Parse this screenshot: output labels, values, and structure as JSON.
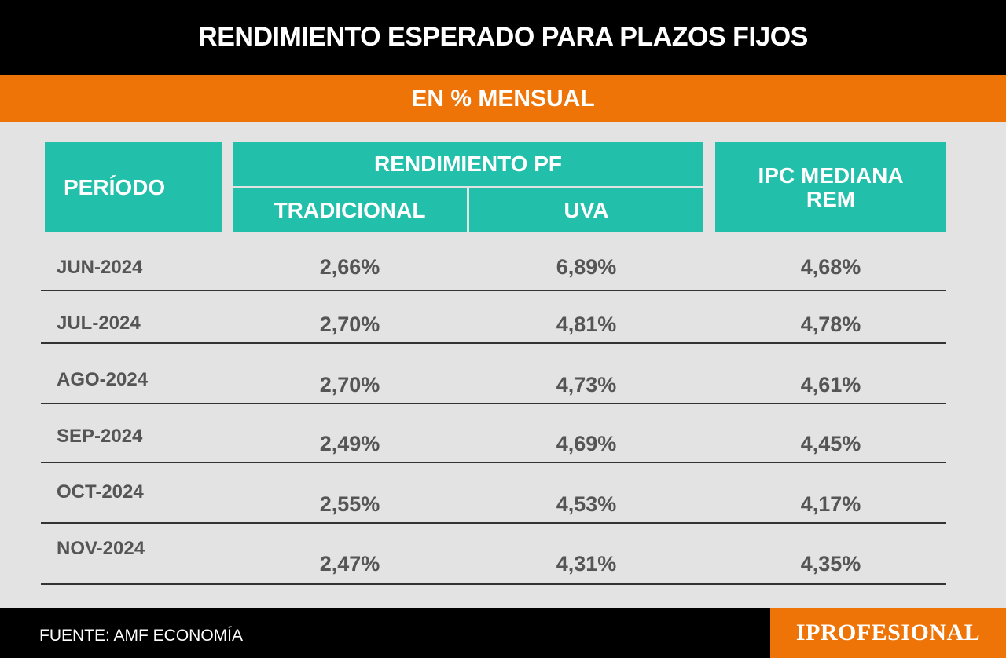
{
  "header": {
    "title": "RENDIMIENTO ESPERADO PARA PLAZOS FIJOS",
    "subtitle": "EN % MENSUAL"
  },
  "table": {
    "col_periodo": "PERÍODO",
    "col_group": "RENDIMIENTO PF",
    "col_tradicional": "TRADICIONAL",
    "col_uva": "UVA",
    "col_ipc_line1": "IPC MEDIANA",
    "col_ipc_line2": "REM"
  },
  "chart_data": {
    "type": "table",
    "title": "RENDIMIENTO ESPERADO PARA PLAZOS FIJOS",
    "subtitle": "EN % MENSUAL",
    "columns": [
      "PERÍODO",
      "TRADICIONAL",
      "UVA",
      "IPC MEDIANA REM"
    ],
    "rows": [
      {
        "period": "JUN-2024",
        "tradicional": "2,66%",
        "uva": "6,89%",
        "ipc": "4,68%"
      },
      {
        "period": "JUL-2024",
        "tradicional": "2,70%",
        "uva": "4,81%",
        "ipc": "4,78%"
      },
      {
        "period": "AGO-2024",
        "tradicional": "2,70%",
        "uva": "4,73%",
        "ipc": "4,61%"
      },
      {
        "period": "SEP-2024",
        "tradicional": "2,49%",
        "uva": "4,69%",
        "ipc": "4,45%"
      },
      {
        "period": "OCT-2024",
        "tradicional": "2,55%",
        "uva": "4,53%",
        "ipc": "4,17%"
      },
      {
        "period": "NOV-2024",
        "tradicional": "2,47%",
        "uva": "4,31%",
        "ipc": "4,35%"
      }
    ]
  },
  "footer": {
    "source": "FUENTE: AMF ECONOMÍA",
    "logo": "IPROFESIONAL"
  },
  "colors": {
    "header_bg": "#000000",
    "accent_orange": "#ee7408",
    "teal": "#22bfaa",
    "background": "#e3e3e3"
  }
}
